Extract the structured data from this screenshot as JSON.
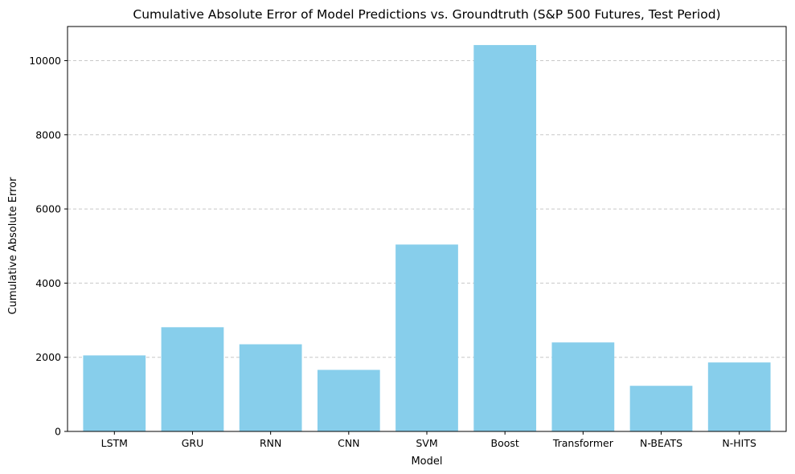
{
  "chart_data": {
    "type": "bar",
    "title": "Cumulative Absolute Error of Model Predictions vs. Groundtruth (S&P 500 Futures, Test Period)",
    "xlabel": "Model",
    "ylabel": "Cumulative Absolute Error",
    "categories": [
      "LSTM",
      "GRU",
      "RNN",
      "CNN",
      "SVM",
      "Boost",
      "Transformer",
      "N-BEATS",
      "N-HITS"
    ],
    "values": [
      2050,
      2810,
      2350,
      1660,
      5040,
      10420,
      2400,
      1230,
      1860
    ],
    "ylim": [
      0,
      10920
    ],
    "yticks": [
      0,
      2000,
      4000,
      6000,
      8000,
      10000
    ],
    "grid": "y-dashed",
    "legend": "none",
    "colors": {
      "bar": "#87CEEB",
      "grid": "#c8c8c8",
      "axis": "#000000"
    }
  }
}
